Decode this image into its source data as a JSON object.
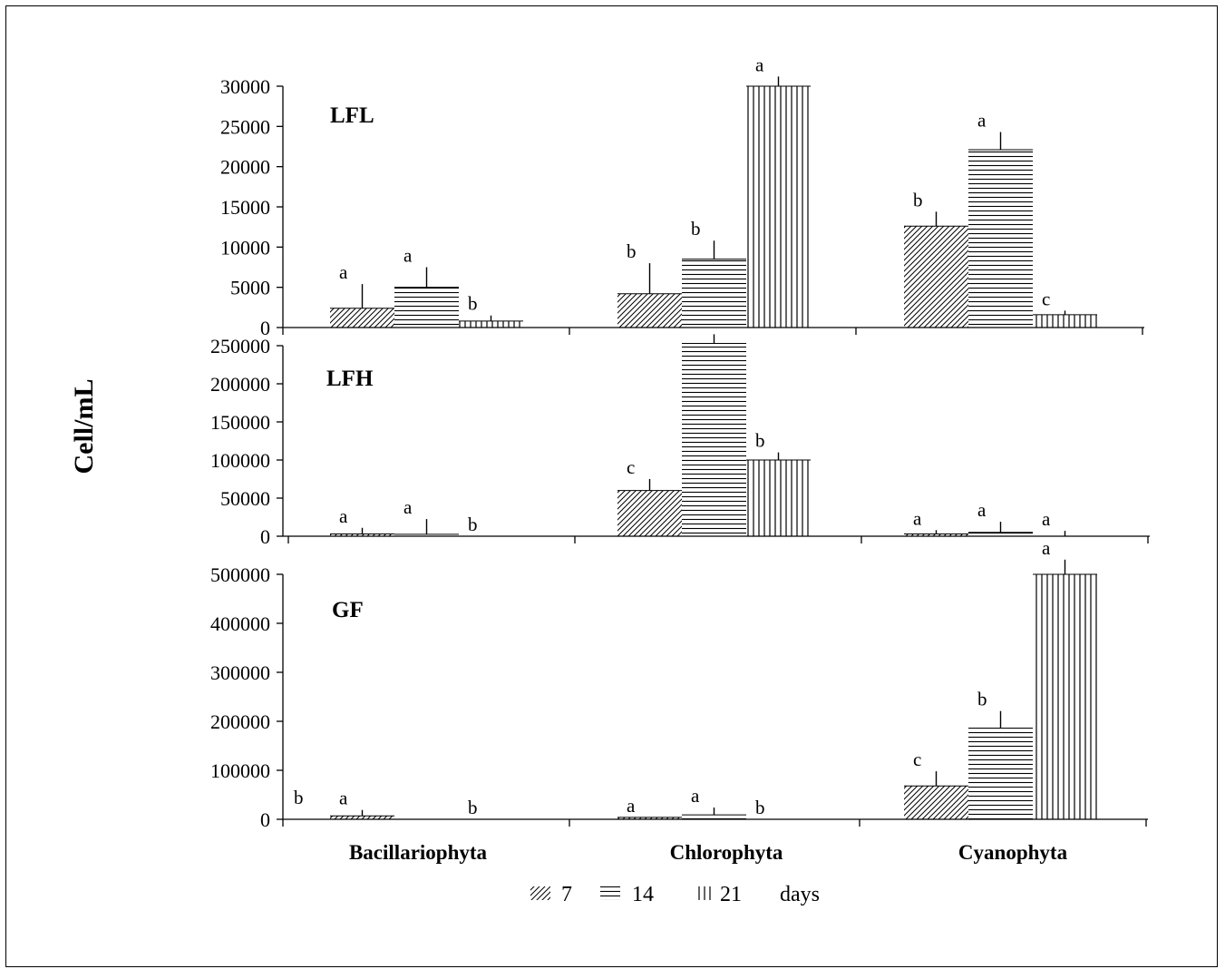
{
  "chart_data": {
    "type": "bar",
    "ylabel": "Cell/mL",
    "categories": [
      "Bacillariophyta",
      "Chlorophyta",
      "Cyanophyta"
    ],
    "series_names": [
      "7",
      "14",
      "21"
    ],
    "legend_suffix": "days",
    "panels": [
      {
        "title": "LFL",
        "ylim": [
          0,
          30000
        ],
        "yticks": [
          "0",
          "5000",
          "10000",
          "15000",
          "20000",
          "25000",
          "30000"
        ],
        "values": [
          [
            2400,
            5000,
            800
          ],
          [
            4200,
            8500,
            30000
          ],
          [
            12600,
            22100,
            1600
          ]
        ],
        "errors": [
          [
            3000,
            2500,
            700
          ],
          [
            3800,
            2300,
            1200
          ],
          [
            1800,
            2200,
            500
          ]
        ],
        "letters": [
          [
            "a",
            "a",
            "b"
          ],
          [
            "b",
            "b",
            "a"
          ],
          [
            "b",
            "a",
            "c"
          ]
        ]
      },
      {
        "title": "LFH",
        "ylim": [
          0,
          250000
        ],
        "yticks": [
          "0",
          "50000",
          "100000",
          "150000",
          "200000",
          "250000"
        ],
        "values": [
          [
            3000,
            2500,
            0
          ],
          [
            60000,
            253000,
            100000
          ],
          [
            3000,
            5000,
            0
          ]
        ],
        "errors": [
          [
            8000,
            20000,
            0
          ],
          [
            15000,
            15000,
            10000
          ],
          [
            5000,
            14000,
            7000
          ]
        ],
        "letters": [
          [
            "a",
            "a",
            "b"
          ],
          [
            "c",
            "",
            "b"
          ],
          [
            "a",
            "a",
            "a"
          ]
        ]
      },
      {
        "title": "GF",
        "ylim": [
          0,
          500000
        ],
        "yticks": [
          "0",
          "100000",
          "200000",
          "300000",
          "400000",
          "500000"
        ],
        "values": [
          [
            7000,
            0,
            0
          ],
          [
            4000,
            9000,
            0
          ],
          [
            68000,
            186000,
            500000
          ]
        ],
        "errors": [
          [
            12000,
            0,
            0
          ],
          [
            0,
            15000,
            0
          ],
          [
            30000,
            35000,
            30000
          ]
        ],
        "letters": [
          [
            "a",
            "",
            "b"
          ],
          [
            "a",
            "a",
            "b"
          ],
          [
            "c",
            "b",
            "a"
          ]
        ],
        "extra_letter": "b"
      }
    ]
  },
  "colors": {
    "ink": "#000000",
    "background": "#ffffff"
  }
}
